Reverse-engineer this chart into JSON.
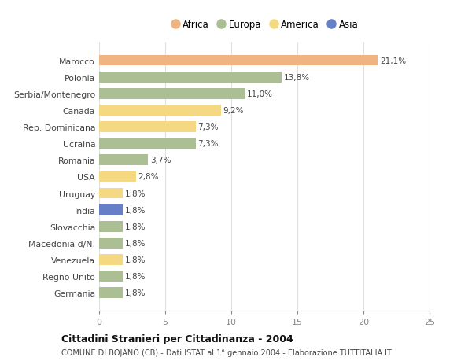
{
  "countries": [
    "Germania",
    "Regno Unito",
    "Venezuela",
    "Macedonia d/N.",
    "Slovacchia",
    "India",
    "Uruguay",
    "USA",
    "Romania",
    "Ucraina",
    "Rep. Dominicana",
    "Canada",
    "Serbia/Montenegro",
    "Polonia",
    "Marocco"
  ],
  "values": [
    1.8,
    1.8,
    1.8,
    1.8,
    1.8,
    1.8,
    1.8,
    2.8,
    3.7,
    7.3,
    7.3,
    9.2,
    11.0,
    13.8,
    21.1
  ],
  "labels": [
    "1,8%",
    "1,8%",
    "1,8%",
    "1,8%",
    "1,8%",
    "1,8%",
    "1,8%",
    "2,8%",
    "3,7%",
    "7,3%",
    "7,3%",
    "9,2%",
    "11,0%",
    "13,8%",
    "21,1%"
  ],
  "continents": [
    "Europa",
    "Europa",
    "America",
    "Europa",
    "Europa",
    "Asia",
    "America",
    "America",
    "Europa",
    "Europa",
    "America",
    "America",
    "Europa",
    "Europa",
    "Africa"
  ],
  "colors": {
    "Africa": "#F0B482",
    "Europa": "#ABBE94",
    "America": "#F5D882",
    "Asia": "#6680C8"
  },
  "legend_order": [
    "Africa",
    "Europa",
    "America",
    "Asia"
  ],
  "legend_colors": [
    "#F0B482",
    "#ABBE94",
    "#F5D882",
    "#6680C8"
  ],
  "xlim": [
    0,
    25
  ],
  "xticks": [
    0,
    5,
    10,
    15,
    20,
    25
  ],
  "title": "Cittadini Stranieri per Cittadinanza - 2004",
  "subtitle": "COMUNE DI BOJANO (CB) - Dati ISTAT al 1° gennaio 2004 - Elaborazione TUTTITALIA.IT",
  "bg_color": "#ffffff",
  "grid_color": "#e0e0e0",
  "bar_height": 0.65
}
